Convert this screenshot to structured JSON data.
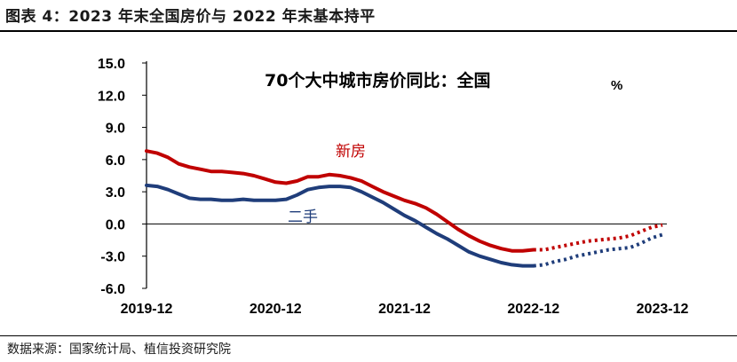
{
  "figure_title": "图表 4：2023 年末全国房价与 2022 年末基本持平",
  "source_note": "数据来源：国家统计局、植信投资研究院",
  "chart_data": {
    "type": "line",
    "title": "70个大中城市房价同比：全国",
    "unit": "%",
    "ylim": [
      -6.0,
      15.0
    ],
    "yticks": [
      "15.0",
      "12.0",
      "9.0",
      "6.0",
      "3.0",
      "0.0",
      "-3.0",
      "-6.0"
    ],
    "xticks": [
      "2019-12",
      "2020-12",
      "2021-12",
      "2022-12",
      "2023-12"
    ],
    "x": [
      "2019-12",
      "2020-01",
      "2020-02",
      "2020-03",
      "2020-04",
      "2020-05",
      "2020-06",
      "2020-07",
      "2020-08",
      "2020-09",
      "2020-10",
      "2020-11",
      "2020-12",
      "2021-01",
      "2021-02",
      "2021-03",
      "2021-04",
      "2021-05",
      "2021-06",
      "2021-07",
      "2021-08",
      "2021-09",
      "2021-10",
      "2021-11",
      "2021-12",
      "2022-01",
      "2022-02",
      "2022-03",
      "2022-04",
      "2022-05",
      "2022-06",
      "2022-07",
      "2022-08",
      "2022-09",
      "2022-10",
      "2022-11",
      "2022-12",
      "2023-01",
      "2023-02",
      "2023-03",
      "2023-04",
      "2023-05",
      "2023-06",
      "2023-07",
      "2023-08",
      "2023-09",
      "2023-10",
      "2023-11",
      "2023-12"
    ],
    "split_index": 36,
    "series": [
      {
        "name": "新房",
        "color": "#c00000",
        "values": [
          6.8,
          6.6,
          6.2,
          5.6,
          5.3,
          5.1,
          4.9,
          4.9,
          4.8,
          4.7,
          4.5,
          4.2,
          3.9,
          3.8,
          4.0,
          4.4,
          4.4,
          4.6,
          4.5,
          4.3,
          4.0,
          3.5,
          3.0,
          2.6,
          2.2,
          1.9,
          1.5,
          0.9,
          0.2,
          -0.5,
          -1.1,
          -1.6,
          -2.0,
          -2.3,
          -2.5,
          -2.5,
          -2.4,
          -2.4,
          -2.2,
          -2.0,
          -1.8,
          -1.6,
          -1.5,
          -1.4,
          -1.3,
          -1.1,
          -0.7,
          -0.3,
          -0.1
        ]
      },
      {
        "name": "二手",
        "color": "#1f3d7a",
        "values": [
          3.6,
          3.5,
          3.2,
          2.8,
          2.4,
          2.3,
          2.3,
          2.2,
          2.2,
          2.3,
          2.2,
          2.2,
          2.2,
          2.3,
          2.7,
          3.2,
          3.4,
          3.5,
          3.5,
          3.4,
          3.0,
          2.5,
          2.0,
          1.4,
          0.8,
          0.3,
          -0.3,
          -0.9,
          -1.4,
          -2.0,
          -2.6,
          -3.0,
          -3.3,
          -3.6,
          -3.8,
          -3.9,
          -3.9,
          -3.8,
          -3.5,
          -3.3,
          -3.0,
          -2.8,
          -2.6,
          -2.4,
          -2.3,
          -2.2,
          -1.8,
          -1.3,
          -1.0
        ]
      }
    ],
    "annotations": [
      "新房",
      "二手"
    ]
  }
}
